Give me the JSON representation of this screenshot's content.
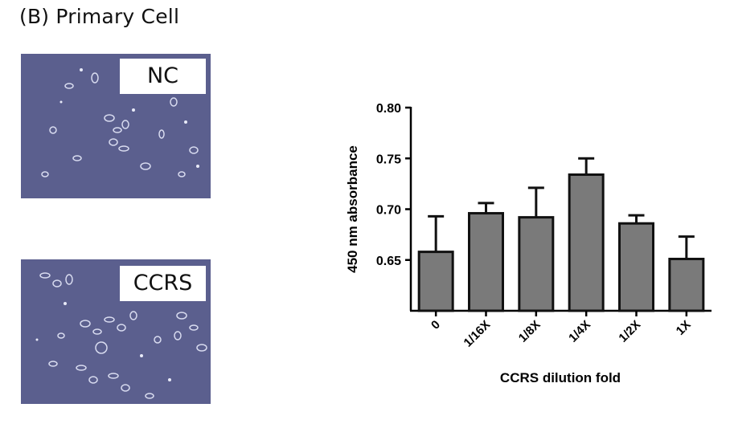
{
  "panel": {
    "title": "(B) Primary Cell"
  },
  "micrographs": [
    {
      "label": "NC"
    },
    {
      "label": "CCRS"
    }
  ],
  "colors": {
    "bar_fill": "#7a7a7a",
    "bar_stroke": "#111111",
    "micrograph_bg": "#5b5f8e"
  },
  "chart_data": {
    "type": "bar",
    "xlabel": "CCRS dilution fold",
    "ylabel": "450 nm absorbance",
    "categories": [
      "0",
      "1/16X",
      "1/8X",
      "1/4X",
      "1/2X",
      "1X"
    ],
    "values": [
      0.658,
      0.696,
      0.692,
      0.734,
      0.686,
      0.651
    ],
    "error_upper": [
      0.693,
      0.706,
      0.721,
      0.75,
      0.694,
      0.673
    ],
    "ylim": [
      0.6,
      0.8
    ],
    "yticks": [
      "0.65",
      "0.70",
      "0.75",
      "0.80"
    ],
    "grid": false,
    "legend": "none"
  }
}
